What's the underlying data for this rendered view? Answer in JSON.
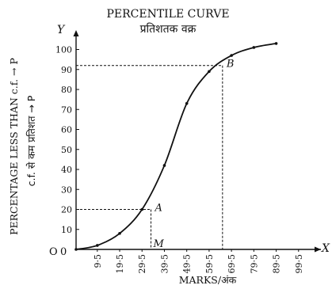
{
  "chart_data": {
    "type": "line",
    "title": "PERCENTILE CURVE",
    "subtitle": "प्रतिशतक वक्र",
    "xlabel": "MARKS/अंक",
    "ylabel": "PERCENTAGE LESS THAN c.f. → P",
    "ylabel_hindi": "c.f. से कम प्रतिशत → P",
    "x_axis_letter": "X",
    "y_axis_letter": "Y",
    "origin_label": "O",
    "origin_zero": "0",
    "xlim": [
      0,
      109.5
    ],
    "ylim": [
      0,
      110
    ],
    "x_ticks": [
      9.5,
      19.5,
      29.5,
      39.5,
      49.5,
      59.5,
      69.5,
      79.5,
      89.5,
      99.5
    ],
    "x_tick_labels": [
      "9·5",
      "19·5",
      "29·5",
      "39·5",
      "49·5",
      "59·5",
      "69·5",
      "79·5",
      "89·5",
      "99·5"
    ],
    "y_ticks": [
      10,
      20,
      30,
      40,
      50,
      60,
      70,
      80,
      90,
      100
    ],
    "y_tick_labels": [
      "10",
      "20",
      "30",
      "40",
      "50",
      "60",
      "70",
      "80",
      "90",
      "100"
    ],
    "series": [
      {
        "x": [
          0,
          9.5,
          19.5,
          29.5,
          39.5,
          49.5,
          59.5,
          69.5,
          79.5,
          89.5
        ],
        "y": [
          0,
          2,
          8,
          20,
          42,
          73,
          89,
          97,
          101,
          103
        ]
      }
    ],
    "annotations": [
      {
        "label": "A",
        "x": 33.5,
        "y": 20
      },
      {
        "label": "B",
        "x": 65.5,
        "y": 92
      },
      {
        "label": "M",
        "x": 33.5,
        "y": 0
      }
    ],
    "grid": false,
    "colors": {
      "line": "#111111",
      "background": "#ffffff"
    }
  }
}
